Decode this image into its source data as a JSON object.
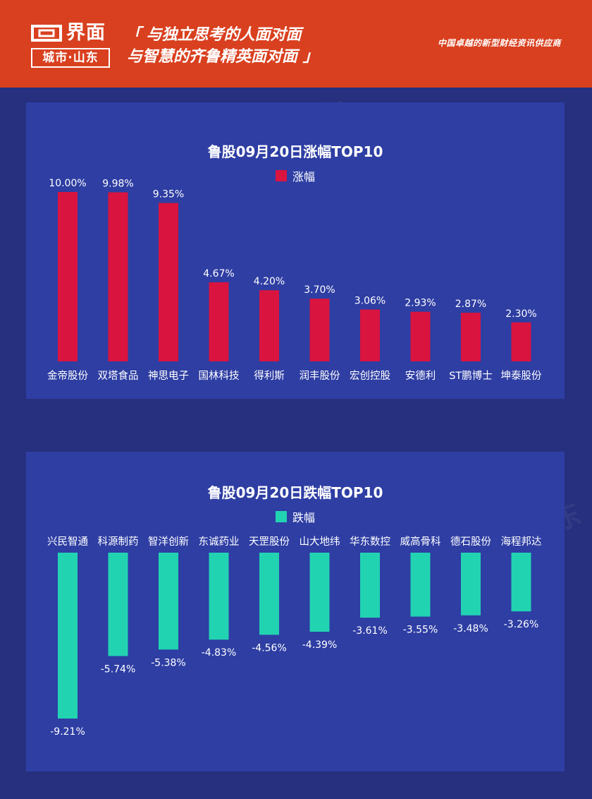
{
  "header": {
    "logo_name": "界面",
    "logo_sub": "城市·山东",
    "slogan_line1": "「 与独立思考的人面对面",
    "slogan_line2": "与智慧的齐鲁精英面对面 」",
    "tagline": "中国卓越的新型财经资讯供应商"
  },
  "colors": {
    "header_bg": "#d9401f",
    "page_bg": "#26307e",
    "panel_bg": "#2e3ea3",
    "rise": "#d9143f",
    "fall": "#22d3b2"
  },
  "watermark": "界面 城市·山东",
  "chart_data": [
    {
      "type": "bar",
      "title": "鲁股09月20日涨幅TOP10",
      "legend": [
        "涨幅"
      ],
      "categories": [
        "金帝股份",
        "双塔食品",
        "神思电子",
        "国林科技",
        "得利斯",
        "润丰股份",
        "宏创控股",
        "安德利",
        "ST鹏博士",
        "坤泰股份"
      ],
      "series": [
        {
          "name": "涨幅",
          "values": [
            10.0,
            9.98,
            9.35,
            4.67,
            4.2,
            3.7,
            3.06,
            2.93,
            2.87,
            2.3
          ],
          "labels": [
            "10.00%",
            "9.98%",
            "9.35%",
            "4.67%",
            "4.20%",
            "3.70%",
            "3.06%",
            "2.93%",
            "2.87%",
            "2.30%"
          ]
        }
      ],
      "ylim": [
        0,
        10
      ]
    },
    {
      "type": "bar",
      "title": "鲁股09月20日跌幅TOP10",
      "legend": [
        "跌幅"
      ],
      "categories": [
        "兴民智通",
        "科源制药",
        "智洋创新",
        "东诚药业",
        "天罡股份",
        "山大地纬",
        "华东数控",
        "威高骨科",
        "德石股份",
        "海程邦达"
      ],
      "series": [
        {
          "name": "跌幅",
          "values": [
            -9.21,
            -5.74,
            -5.38,
            -4.83,
            -4.56,
            -4.39,
            -3.61,
            -3.55,
            -3.48,
            -3.26
          ],
          "labels": [
            "-9.21%",
            "-5.74%",
            "-5.38%",
            "-4.83%",
            "-4.56%",
            "-4.39%",
            "-3.61%",
            "-3.55%",
            "-3.48%",
            "-3.26%"
          ]
        }
      ],
      "ylim": [
        -9.21,
        0
      ]
    }
  ]
}
